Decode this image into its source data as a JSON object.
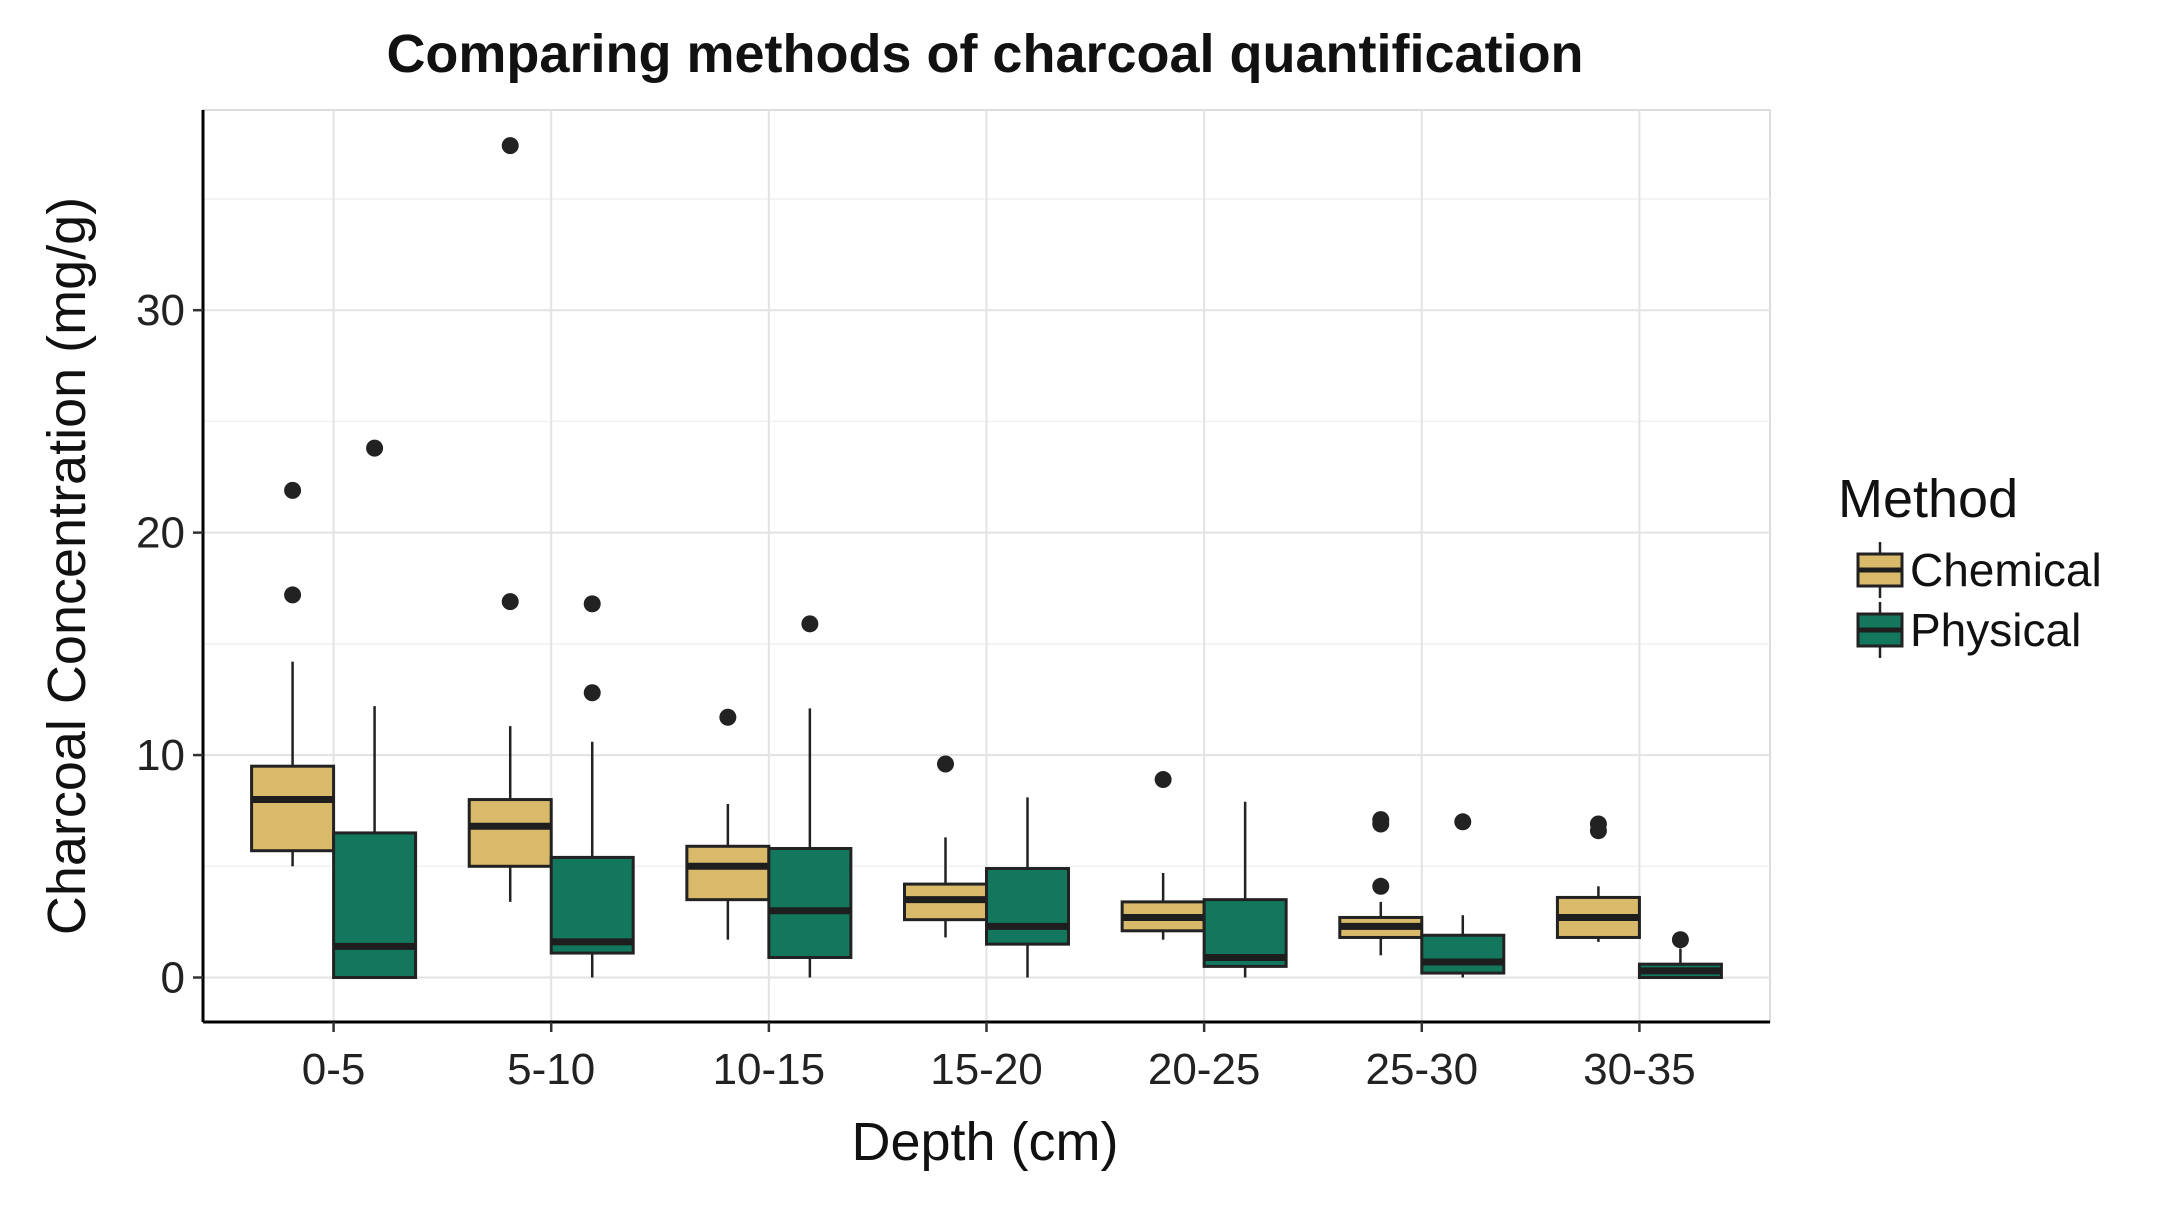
{
  "chart_data": {
    "type": "box",
    "title": "Comparing methods of charcoal quantification",
    "xlabel": "Depth (cm)",
    "ylabel": "Charcoal Concentration (mg/g)",
    "ylim": [
      -2,
      39
    ],
    "yticks": [
      0,
      10,
      20,
      30
    ],
    "grid": true,
    "legend": {
      "title": "Method",
      "placement": "right"
    },
    "categories": [
      "0-5",
      "5-10",
      "10-15",
      "15-20",
      "20-25",
      "25-30",
      "30-35"
    ],
    "series": [
      {
        "name": "Chemical",
        "color": "#D9B96A",
        "boxes": [
          {
            "whisker_low": 5.0,
            "q1": 5.7,
            "median": 8.0,
            "q3": 9.5,
            "whisker_high": 14.2,
            "outliers": [
              17.2,
              21.9
            ]
          },
          {
            "whisker_low": 3.4,
            "q1": 5.0,
            "median": 6.8,
            "q3": 8.0,
            "whisker_high": 11.3,
            "outliers": [
              16.9,
              37.4
            ]
          },
          {
            "whisker_low": 1.7,
            "q1": 3.5,
            "median": 5.0,
            "q3": 5.9,
            "whisker_high": 7.8,
            "outliers": [
              11.7
            ]
          },
          {
            "whisker_low": 1.8,
            "q1": 2.6,
            "median": 3.5,
            "q3": 4.2,
            "whisker_high": 6.3,
            "outliers": [
              9.6
            ]
          },
          {
            "whisker_low": 1.7,
            "q1": 2.1,
            "median": 2.7,
            "q3": 3.4,
            "whisker_high": 4.7,
            "outliers": [
              8.9
            ]
          },
          {
            "whisker_low": 1.0,
            "q1": 1.8,
            "median": 2.3,
            "q3": 2.7,
            "whisker_high": 3.4,
            "outliers": [
              4.1,
              6.9,
              7.1
            ]
          },
          {
            "whisker_low": 1.6,
            "q1": 1.8,
            "median": 2.7,
            "q3": 3.6,
            "whisker_high": 4.1,
            "outliers": [
              6.6,
              6.9
            ]
          }
        ]
      },
      {
        "name": "Physical",
        "color": "#12775C",
        "boxes": [
          {
            "whisker_low": 0.0,
            "q1": 0.0,
            "median": 1.4,
            "q3": 6.5,
            "whisker_high": 12.2,
            "outliers": [
              23.8
            ]
          },
          {
            "whisker_low": 0.0,
            "q1": 1.1,
            "median": 1.6,
            "q3": 5.4,
            "whisker_high": 10.6,
            "outliers": [
              12.8,
              16.8
            ]
          },
          {
            "whisker_low": 0.0,
            "q1": 0.9,
            "median": 3.0,
            "q3": 5.8,
            "whisker_high": 12.1,
            "outliers": [
              15.9
            ]
          },
          {
            "whisker_low": 0.0,
            "q1": 1.5,
            "median": 2.3,
            "q3": 4.9,
            "whisker_high": 8.1,
            "outliers": []
          },
          {
            "whisker_low": 0.0,
            "q1": 0.5,
            "median": 0.9,
            "q3": 3.5,
            "whisker_high": 7.9,
            "outliers": []
          },
          {
            "whisker_low": 0.0,
            "q1": 0.2,
            "median": 0.7,
            "q3": 1.9,
            "whisker_high": 2.8,
            "outliers": [
              7.0
            ]
          },
          {
            "whisker_low": 0.0,
            "q1": 0.0,
            "median": 0.3,
            "q3": 0.6,
            "whisker_high": 1.3,
            "outliers": [
              1.7
            ]
          }
        ]
      }
    ]
  }
}
